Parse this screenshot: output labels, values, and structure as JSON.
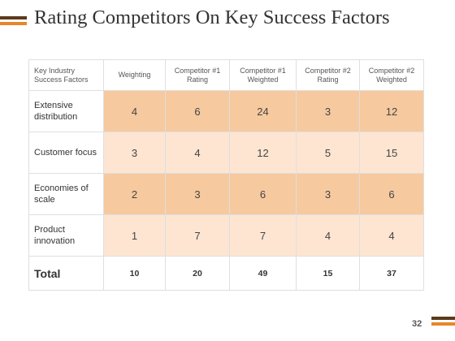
{
  "slide": {
    "title": "Rating Competitors On Key Success Factors",
    "page_number": "32"
  },
  "table": {
    "headers": [
      "Key Industry Success Factors",
      "Weighting",
      "Competitor #1 Rating",
      "Competitor #1 Weighted",
      "Competitor #2 Rating",
      "Competitor #2 Weighted"
    ],
    "rows": [
      {
        "factor": "Extensive distribution",
        "values": [
          "4",
          "6",
          "24",
          "3",
          "12"
        ]
      },
      {
        "factor": "Customer focus",
        "values": [
          "3",
          "4",
          "12",
          "5",
          "15"
        ]
      },
      {
        "factor": "Economies of scale",
        "values": [
          "2",
          "3",
          "6",
          "3",
          "6"
        ]
      },
      {
        "factor": "Product innovation",
        "values": [
          "1",
          "7",
          "7",
          "4",
          "4"
        ]
      }
    ],
    "total": {
      "label": "Total",
      "values": [
        "10",
        "20",
        "49",
        "15",
        "37"
      ]
    }
  },
  "colors": {
    "accent_dark": "#5b3a1c",
    "accent_orange": "#e8862a",
    "row_dark": "#f6c99f",
    "row_light": "#fde5d2"
  }
}
